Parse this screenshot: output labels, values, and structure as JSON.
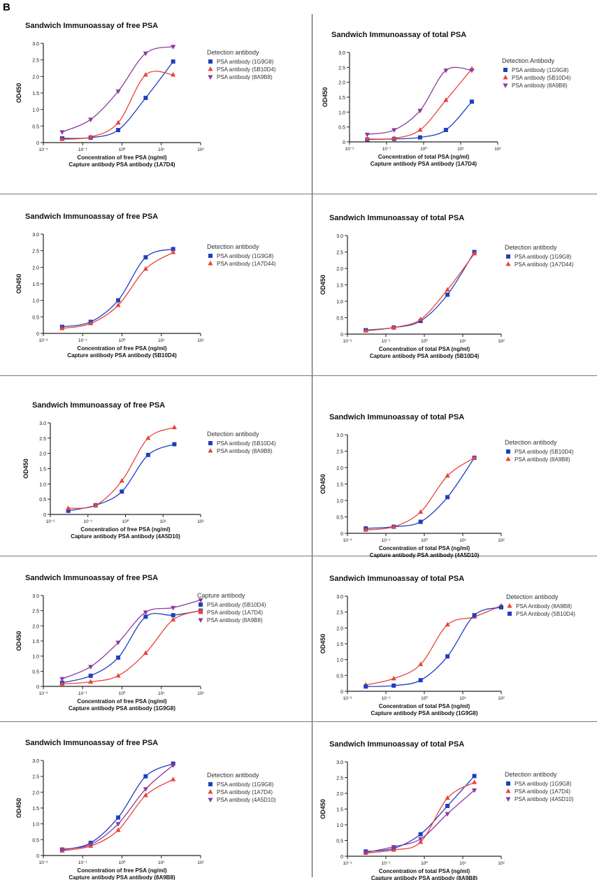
{
  "figure_label": "B",
  "chart_data": [
    {
      "type": "line",
      "title": "Sandwich Immunoassay of free PSA",
      "xlabel": "Concentration of free PSA (ng/ml)",
      "xlabel2": "Capture antibody PSA antibody (1A7D4)",
      "ylabel": "OD450",
      "legend_title": "Detection antibody",
      "legend_placement": "right",
      "x_scale": "log",
      "xlim": [
        0.01,
        100
      ],
      "ylim": [
        0,
        3
      ],
      "x_ticks": [
        "10⁻²",
        "10⁻¹",
        "10⁰",
        "10¹",
        "10²"
      ],
      "y_ticks": [
        "0",
        "0.5",
        "1.0",
        "1.5",
        "2.0",
        "2.5",
        "3.0"
      ],
      "series": [
        {
          "name": "PSA antibody (1G9G8)",
          "color": "#1f3fbf",
          "marker": "square",
          "x": [
            0.03,
            0.16,
            0.8,
            4,
            20
          ],
          "y": [
            0.13,
            0.15,
            0.38,
            1.35,
            2.45
          ]
        },
        {
          "name": "PSA antibody (5B10D4)",
          "color": "#e8443a",
          "marker": "triangle-up",
          "x": [
            0.03,
            0.16,
            0.8,
            4,
            20
          ],
          "y": [
            0.1,
            0.17,
            0.6,
            2.05,
            2.05
          ]
        },
        {
          "name": "PSA antibody (8A9B8)",
          "color": "#8c3a9e",
          "marker": "triangle-down",
          "x": [
            0.03,
            0.16,
            0.8,
            4,
            20
          ],
          "y": [
            0.32,
            0.7,
            1.55,
            2.7,
            2.9
          ]
        }
      ]
    },
    {
      "type": "line",
      "title": "Sandwich Immunoassay of total PSA",
      "xlabel": "Concentration of total PSA (ng/ml)",
      "xlabel2": "Capture antibody PSA antibody (1A7D4)",
      "ylabel": "OD450",
      "legend_title": "Detection Antibody",
      "legend_placement": "right",
      "x_scale": "log",
      "xlim": [
        0.01,
        100
      ],
      "ylim": [
        0,
        3
      ],
      "x_ticks": [
        "10⁻²",
        "10⁻¹",
        "10⁰",
        "10¹",
        "10²"
      ],
      "y_ticks": [
        "0",
        "0.5",
        "1.0",
        "1.5",
        "2.0",
        "2.5",
        "3.0"
      ],
      "series": [
        {
          "name": "PSA antibody (1G9G8)",
          "color": "#1f3fbf",
          "marker": "square",
          "x": [
            0.03,
            0.16,
            0.8,
            4,
            20
          ],
          "y": [
            0.08,
            0.1,
            0.15,
            0.4,
            1.35
          ]
        },
        {
          "name": "PSA antibody (5B10D4)",
          "color": "#e8443a",
          "marker": "triangle-up",
          "x": [
            0.03,
            0.16,
            0.8,
            4,
            20
          ],
          "y": [
            0.1,
            0.12,
            0.4,
            1.4,
            2.45
          ]
        },
        {
          "name": "PSA antibody (8A9B8)",
          "color": "#8c3a9e",
          "marker": "triangle-down",
          "x": [
            0.03,
            0.16,
            0.8,
            4,
            20
          ],
          "y": [
            0.25,
            0.4,
            1.05,
            2.4,
            2.4
          ]
        }
      ]
    },
    {
      "type": "line",
      "title": "Sandwich Immunoassay of free PSA",
      "xlabel": "Concentration of free PSA (ng/ml)",
      "xlabel2": "Capture antibody PSA antibody (5B10D4)",
      "ylabel": "OD450",
      "legend_title": "Detection antibody",
      "legend_placement": "right",
      "x_scale": "log",
      "xlim": [
        0.01,
        100
      ],
      "ylim": [
        0,
        3
      ],
      "x_ticks": [
        "10⁻²",
        "10⁻¹",
        "10⁰",
        "10¹",
        "10²"
      ],
      "y_ticks": [
        "0",
        "0.5",
        "1.0",
        "1.5",
        "2.0",
        "2.5",
        "3.0"
      ],
      "series": [
        {
          "name": "PSA antibody (1G9G8)",
          "color": "#1f3fbf",
          "marker": "square",
          "x": [
            0.03,
            0.16,
            0.8,
            4,
            20
          ],
          "y": [
            0.2,
            0.35,
            1.0,
            2.3,
            2.55
          ]
        },
        {
          "name": "PSA antibody (1A7D44)",
          "color": "#e8443a",
          "marker": "triangle-up",
          "x": [
            0.03,
            0.16,
            0.8,
            4,
            20
          ],
          "y": [
            0.15,
            0.3,
            0.85,
            1.95,
            2.45
          ]
        }
      ]
    },
    {
      "type": "line",
      "title": "Sandwich Immunoassay of total PSA",
      "xlabel": "Concentration of total PSA (ng/ml)",
      "xlabel2": "Capture antibody PSA antibody (5B10D4)",
      "ylabel": "OD450",
      "legend_title": "Detection antibody",
      "legend_placement": "right",
      "x_scale": "log",
      "xlim": [
        0.01,
        100
      ],
      "ylim": [
        0,
        3
      ],
      "x_ticks": [
        "10⁻²",
        "10⁻¹",
        "10⁰",
        "10¹",
        "10²"
      ],
      "y_ticks": [
        "0",
        "0.5",
        "1.0",
        "1.5",
        "2.0",
        "2.5",
        "3.0"
      ],
      "series": [
        {
          "name": "PSA antibody (1G9G8)",
          "color": "#1f3fbf",
          "marker": "square",
          "x": [
            0.03,
            0.16,
            0.8,
            4,
            20
          ],
          "y": [
            0.12,
            0.2,
            0.4,
            1.2,
            2.5
          ]
        },
        {
          "name": "PSA antibody (1A7D44)",
          "color": "#e8443a",
          "marker": "triangle-up",
          "x": [
            0.03,
            0.16,
            0.8,
            4,
            20
          ],
          "y": [
            0.1,
            0.2,
            0.45,
            1.35,
            2.45
          ]
        }
      ]
    },
    {
      "type": "line",
      "title": "Sandwich Immunoassay of free PSA",
      "xlabel": "Concentration of free PSA (ng/ml)",
      "xlabel2": "Capture antibody PSA antibody (4A5D10)",
      "ylabel": "OD450",
      "legend_title": "Detection antibody",
      "legend_placement": "right",
      "x_scale": "log",
      "xlim": [
        0.01,
        100
      ],
      "ylim": [
        0,
        3
      ],
      "x_ticks": [
        "10⁻²",
        "10⁻¹",
        "10⁰",
        "10¹",
        "10²"
      ],
      "y_ticks": [
        "0",
        "0.5",
        "1.0",
        "1.5",
        "2.0",
        "2.5",
        "3.0"
      ],
      "series": [
        {
          "name": "PSA antibody (5B10D4)",
          "color": "#1f3fbf",
          "marker": "square",
          "x": [
            0.03,
            0.16,
            0.8,
            4,
            20
          ],
          "y": [
            0.12,
            0.3,
            0.75,
            1.95,
            2.3
          ]
        },
        {
          "name": "PSA antibody (8A9B8)",
          "color": "#e8443a",
          "marker": "triangle-up",
          "x": [
            0.03,
            0.16,
            0.8,
            4,
            20
          ],
          "y": [
            0.2,
            0.3,
            1.1,
            2.5,
            2.85
          ]
        }
      ]
    },
    {
      "type": "line",
      "title": "Sandwich Immunoassay of total PSA",
      "xlabel": "Concentration of total PSA (ng/ml)",
      "xlabel2": "Capture antibody PSA antibody (4A5D10)",
      "ylabel": "OD450",
      "legend_title": "Detection antibody",
      "legend_placement": "right",
      "x_scale": "log",
      "xlim": [
        0.01,
        100
      ],
      "ylim": [
        0,
        3
      ],
      "x_ticks": [
        "10⁻²",
        "10⁻¹",
        "10⁰",
        "10¹",
        "10²"
      ],
      "y_ticks": [
        "0",
        "0.5",
        "1.0",
        "1.5",
        "2.0",
        "2.5",
        "3.0"
      ],
      "series": [
        {
          "name": "PSA antibody (5B10D4)",
          "color": "#1f3fbf",
          "marker": "square",
          "x": [
            0.03,
            0.16,
            0.8,
            4,
            20
          ],
          "y": [
            0.15,
            0.2,
            0.35,
            1.1,
            2.3
          ]
        },
        {
          "name": "PSA antibody (8A9B8)",
          "color": "#e8443a",
          "marker": "triangle-up",
          "x": [
            0.03,
            0.16,
            0.8,
            4,
            20
          ],
          "y": [
            0.1,
            0.2,
            0.65,
            1.75,
            2.3
          ]
        }
      ]
    },
    {
      "type": "line",
      "title": "Sandwich Immunoassay of free PSA",
      "xlabel": "Concentration of free PSA (ng/ml)",
      "xlabel2": "Capture antibody PSA antibody (1G9G8)",
      "ylabel": "OD450",
      "legend_title": "Capture antibody",
      "legend_placement": "top-right",
      "x_scale": "log",
      "xlim": [
        0.01,
        100
      ],
      "ylim": [
        0,
        3
      ],
      "x_ticks": [
        "10⁻²",
        "10⁻¹",
        "10⁰",
        "10¹",
        "10²"
      ],
      "y_ticks": [
        "0",
        "0.5",
        "1.0",
        "1.5",
        "2.0",
        "2.5",
        "3.0"
      ],
      "series": [
        {
          "name": "PSA antibody (5B10D4)",
          "color": "#1f3fbf",
          "marker": "square",
          "x": [
            0.03,
            0.16,
            0.8,
            4,
            20,
            100
          ],
          "y": [
            0.12,
            0.35,
            0.95,
            2.3,
            2.35,
            2.5
          ]
        },
        {
          "name": "PSA antibody (1A7D4)",
          "color": "#e8443a",
          "marker": "triangle-up",
          "x": [
            0.03,
            0.16,
            0.8,
            4,
            20,
            100
          ],
          "y": [
            0.08,
            0.15,
            0.35,
            1.1,
            2.2,
            2.5
          ]
        },
        {
          "name": "PSA antibody (8A9B8)",
          "color": "#8c3a9e",
          "marker": "triangle-down",
          "x": [
            0.03,
            0.16,
            0.8,
            4,
            20,
            100
          ],
          "y": [
            0.25,
            0.65,
            1.45,
            2.45,
            2.6,
            2.85
          ]
        }
      ]
    },
    {
      "type": "line",
      "title": "Sandwich Immunoassay of total PSA",
      "xlabel": "Concentration of total PSA (ng/ml)",
      "xlabel2": "Capture antibody PSA antibody (1G9G8)",
      "ylabel": "OD450",
      "legend_title": "Detection antibody",
      "legend_placement": "top-right",
      "x_scale": "log",
      "xlim": [
        0.01,
        100
      ],
      "ylim": [
        0,
        3
      ],
      "x_ticks": [
        "10⁻²",
        "10⁻¹",
        "10⁰",
        "10¹",
        "10²"
      ],
      "y_ticks": [
        "0",
        "0.5",
        "1.0",
        "1.5",
        "2.0",
        "2.5",
        "3.0"
      ],
      "series": [
        {
          "name": "PSA Antibody (8A9B8)",
          "color": "#e8443a",
          "marker": "triangle-up",
          "x": [
            0.03,
            0.16,
            0.8,
            4,
            20,
            100
          ],
          "y": [
            0.2,
            0.4,
            0.85,
            2.1,
            2.35,
            2.7
          ]
        },
        {
          "name": "PSA Antibody (5B10D4)",
          "color": "#1f3fbf",
          "marker": "square",
          "x": [
            0.03,
            0.16,
            0.8,
            4,
            20,
            100
          ],
          "y": [
            0.15,
            0.18,
            0.35,
            1.1,
            2.4,
            2.65
          ]
        }
      ]
    },
    {
      "type": "line",
      "title": "Sandwich Immunoassay of free PSA",
      "xlabel": "Concentration of free PSA (ng/ml)",
      "xlabel2": "Capture antibody PSA antibody (8A9B8)",
      "ylabel": "OD450",
      "legend_title": "Detection antibody",
      "legend_placement": "right",
      "x_scale": "log",
      "xlim": [
        0.01,
        100
      ],
      "ylim": [
        0,
        3
      ],
      "x_ticks": [
        "10⁻²",
        "10⁻¹",
        "10⁰",
        "10¹",
        "10²"
      ],
      "y_ticks": [
        "0",
        "0.5",
        "1.0",
        "1.5",
        "2.0",
        "2.5",
        "3.0"
      ],
      "series": [
        {
          "name": "PSA antibody (1G9G8)",
          "color": "#1f3fbf",
          "marker": "square",
          "x": [
            0.03,
            0.16,
            0.8,
            4,
            20
          ],
          "y": [
            0.18,
            0.4,
            1.2,
            2.5,
            2.9
          ]
        },
        {
          "name": "PSA antibody (1A7D4)",
          "color": "#e8443a",
          "marker": "triangle-up",
          "x": [
            0.03,
            0.16,
            0.8,
            4,
            20
          ],
          "y": [
            0.15,
            0.3,
            0.8,
            1.9,
            2.4
          ]
        },
        {
          "name": "PSA antibody (4A5D10)",
          "color": "#8c3a9e",
          "marker": "triangle-down",
          "x": [
            0.03,
            0.16,
            0.8,
            4,
            20
          ],
          "y": [
            0.2,
            0.35,
            1.0,
            2.1,
            2.85
          ]
        }
      ]
    },
    {
      "type": "line",
      "title": "Sandwich Immunoassay of total PSA",
      "xlabel": "Concentration of total PSA (ng/ml)",
      "xlabel2": "Capture antibody PSA antibody (8A9B8)",
      "ylabel": "OD450",
      "legend_title": "Detection antibody",
      "legend_placement": "right",
      "x_scale": "log",
      "xlim": [
        0.01,
        100
      ],
      "ylim": [
        0,
        3
      ],
      "x_ticks": [
        "10⁻²",
        "10⁻¹",
        "10⁰",
        "10¹",
        "10²"
      ],
      "y_ticks": [
        "0",
        "0.5",
        "1.0",
        "1.5",
        "2.0",
        "2.5",
        "3.0"
      ],
      "series": [
        {
          "name": "PSA antibody (1G9G8)",
          "color": "#1f3fbf",
          "marker": "square",
          "x": [
            0.03,
            0.16,
            0.8,
            4,
            20
          ],
          "y": [
            0.15,
            0.25,
            0.7,
            1.6,
            2.55
          ]
        },
        {
          "name": "PSA antibody (1A7D4)",
          "color": "#e8443a",
          "marker": "triangle-up",
          "x": [
            0.03,
            0.16,
            0.8,
            4,
            20
          ],
          "y": [
            0.1,
            0.2,
            0.45,
            1.85,
            2.35
          ]
        },
        {
          "name": "PSA antibody (4A5D10)",
          "color": "#8c3a9e",
          "marker": "triangle-down",
          "x": [
            0.03,
            0.16,
            0.8,
            4,
            20
          ],
          "y": [
            0.12,
            0.3,
            0.55,
            1.35,
            2.1
          ]
        }
      ]
    }
  ]
}
